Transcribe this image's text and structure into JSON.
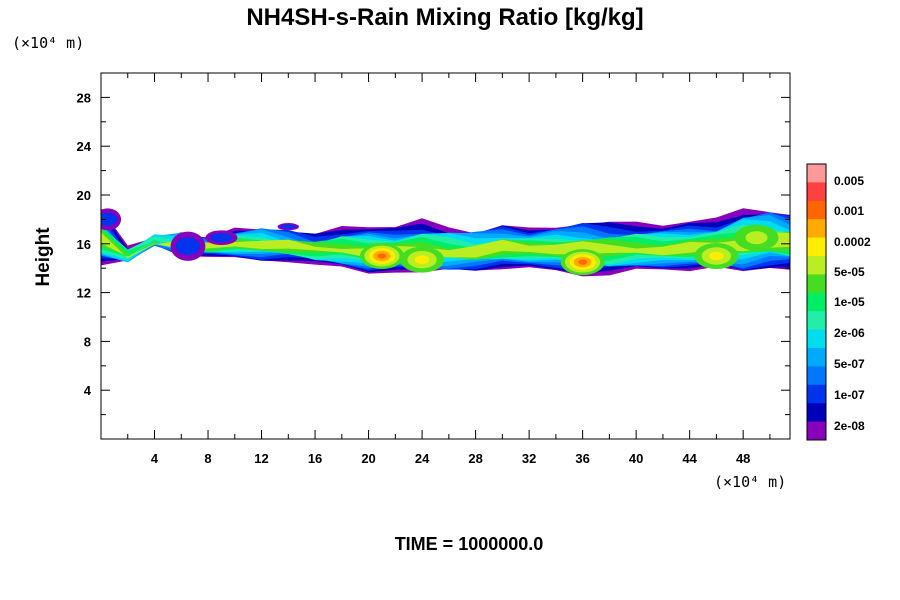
{
  "chart_data": {
    "type": "heatmap",
    "title": "NH4SH-s-Rain Mixing Ratio [kg/kg]",
    "ylabel": "Height",
    "x_units": "(×10⁴ m)",
    "y_units": "(×10⁴ m)",
    "xlim": [
      0,
      51.5
    ],
    "ylim": [
      0,
      30
    ],
    "x_ticks": [
      "4",
      "8",
      "12",
      "16",
      "20",
      "24",
      "28",
      "32",
      "36",
      "40",
      "44",
      "48"
    ],
    "y_ticks": [
      "4",
      "8",
      "12",
      "16",
      "20",
      "24",
      "28"
    ],
    "colorbar": {
      "labels": [
        "0.005",
        "0.001",
        "0.0002",
        "5e-05",
        "1e-05",
        "2e-06",
        "5e-07",
        "1e-07",
        "2e-08"
      ],
      "colors": [
        "#ff9999",
        "#ff4040",
        "#ff6600",
        "#ffaa00",
        "#ffee00",
        "#bbee22",
        "#44dd22",
        "#00ee66",
        "#22eeaa",
        "#00ddee",
        "#00aaff",
        "#0077ff",
        "#0033ee",
        "#0000bb",
        "#8800bb"
      ]
    },
    "layer": {
      "x": [
        0,
        2,
        4,
        6,
        8,
        10,
        12,
        14,
        16,
        18,
        20,
        22,
        24,
        26,
        28,
        30,
        32,
        34,
        36,
        38,
        40,
        42,
        44,
        46,
        48,
        50,
        51.5
      ],
      "bottom": [
        14.3,
        14.5,
        16.0,
        15.0,
        15.0,
        14.8,
        14.6,
        14.7,
        14.4,
        14.0,
        13.5,
        13.7,
        13.5,
        13.7,
        13.8,
        14.0,
        14.0,
        13.8,
        13.5,
        13.5,
        13.8,
        13.8,
        13.8,
        14.0,
        13.5,
        14.0,
        14.0
      ],
      "top": [
        18.8,
        15.5,
        16.5,
        17.0,
        16.5,
        17.3,
        17.5,
        17.0,
        16.6,
        17.3,
        17.5,
        17.3,
        17.8,
        17.4,
        17.2,
        17.6,
        17.3,
        17.6,
        17.8,
        17.6,
        17.6,
        17.6,
        17.8,
        17.9,
        19.0,
        19.0,
        18.5
      ]
    },
    "cores": [
      {
        "x": 21.0,
        "y": 15.0,
        "level": "0.0002"
      },
      {
        "x": 24.0,
        "y": 14.7,
        "level": "5e-05"
      },
      {
        "x": 36.0,
        "y": 14.5,
        "level": "0.0002"
      },
      {
        "x": 46.0,
        "y": 15.0,
        "level": "5e-05"
      },
      {
        "x": 49.0,
        "y": 16.5,
        "level": "1e-05"
      }
    ],
    "time_label": "TIME = 1000000.0"
  }
}
